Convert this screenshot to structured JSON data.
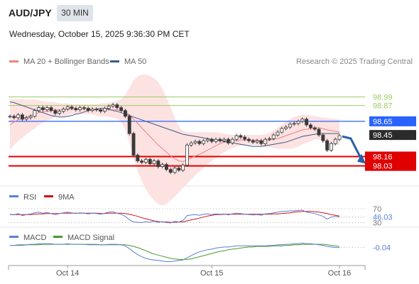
{
  "header": {
    "symbol": "AUD/JPY",
    "timeframe": "30 MIN",
    "datetime": "Wednesday, October 15, 2025 9:36:30 PM CET"
  },
  "colors": {
    "ma20": "#f08080",
    "bollinger_fill": "#fde2e2",
    "ma50": "#3c5a8a",
    "candle": "#3a3a3a",
    "current_price": "#2962ff",
    "support": "#e00000",
    "resistance": "#9acd60",
    "rsi": "#5a7fd8",
    "rsi_ma": "#d01010",
    "macd": "#5a7fd8",
    "macd_signal": "#4a9a2a",
    "arrow": "#2a5fa8"
  },
  "chart_data": [
    {
      "type": "candlestick",
      "legend": [
        {
          "name": "MA 20 + Bollinger Bands",
          "color": "#f08080"
        },
        {
          "name": "MA 50",
          "color": "#3c5a8a"
        }
      ],
      "legend_position": "top-left",
      "attribution": "Research © 2025 Trading Central",
      "ylim": [
        97.75,
        99.35
      ],
      "current_price": 98.65,
      "last_price": 98.45,
      "resistance_levels": [
        98.99,
        98.87
      ],
      "support_levels": [
        98.16,
        98.03
      ],
      "price_labels": [
        "98.99",
        "98.87",
        "98.65",
        "98.45",
        "98.16",
        "98.03"
      ],
      "forecast_arrow": {
        "from": 98.44,
        "to": 98.1
      },
      "x_ticks": [
        "Oct 14",
        "Oct 15",
        "Oct 16"
      ],
      "close": [
        98.72,
        98.7,
        98.74,
        98.68,
        98.7,
        98.72,
        98.8,
        98.84,
        98.81,
        98.84,
        98.8,
        98.76,
        98.79,
        98.82,
        98.85,
        98.83,
        98.81,
        98.84,
        98.83,
        98.8,
        98.82,
        98.81,
        98.79,
        98.83,
        98.86,
        98.88,
        98.84,
        98.8,
        98.72,
        98.48,
        98.18,
        98.1,
        98.08,
        98.12,
        98.06,
        98.1,
        98.02,
        98.05,
        97.98,
        97.94,
        98.0,
        97.97,
        98.04,
        98.32,
        98.35,
        98.37,
        98.34,
        98.38,
        98.4,
        98.37,
        98.4,
        98.38,
        98.4,
        98.35,
        98.4,
        98.45,
        98.43,
        98.4,
        98.38,
        98.36,
        98.38,
        98.34,
        98.4,
        98.41,
        98.46,
        98.5,
        98.55,
        98.57,
        98.61,
        98.62,
        98.65,
        98.68,
        98.6,
        98.56,
        98.54,
        98.46,
        98.38,
        98.25,
        98.34,
        98.4,
        98.45
      ],
      "ma20": [
        98.6,
        98.64,
        98.67,
        98.69,
        98.71,
        98.73,
        98.75,
        98.77,
        98.78,
        98.79,
        98.8,
        98.81,
        98.81,
        98.81,
        98.82,
        98.82,
        98.82,
        98.82,
        98.82,
        98.82,
        98.82,
        98.81,
        98.81,
        98.81,
        98.81,
        98.81,
        98.81,
        98.8,
        98.78,
        98.74,
        98.68,
        98.62,
        98.56,
        98.5,
        98.44,
        98.38,
        98.32,
        98.27,
        98.22,
        98.17,
        98.13,
        98.1,
        98.09,
        98.11,
        98.14,
        98.17,
        98.19,
        98.22,
        98.25,
        98.28,
        98.31,
        98.34,
        98.36,
        98.37,
        98.38,
        98.38,
        98.39,
        98.39,
        98.39,
        98.39,
        98.39,
        98.38,
        98.38,
        98.39,
        98.4,
        98.41,
        98.43,
        98.45,
        98.47,
        98.49,
        98.51,
        98.53,
        98.54,
        98.55,
        98.56,
        98.56,
        98.55,
        98.53,
        98.52,
        98.51,
        98.5
      ],
      "bollinger_upper": [
        98.95,
        98.96,
        98.96,
        98.96,
        98.95,
        98.95,
        98.95,
        98.94,
        98.93,
        98.92,
        98.92,
        98.91,
        98.9,
        98.9,
        98.9,
        98.89,
        98.89,
        98.89,
        98.89,
        98.89,
        98.89,
        98.89,
        98.9,
        98.9,
        98.91,
        98.92,
        98.93,
        98.96,
        99.02,
        99.12,
        99.22,
        99.28,
        99.3,
        99.3,
        99.28,
        99.25,
        99.2,
        99.1,
        98.98,
        98.85,
        98.7,
        98.58,
        98.52,
        98.5,
        98.5,
        98.5,
        98.5,
        98.5,
        98.5,
        98.5,
        98.5,
        98.49,
        98.48,
        98.47,
        98.46,
        98.46,
        98.46,
        98.46,
        98.46,
        98.46,
        98.46,
        98.46,
        98.47,
        98.49,
        98.52,
        98.56,
        98.6,
        98.64,
        98.68,
        98.71,
        98.73,
        98.74,
        98.74,
        98.73,
        98.72,
        98.71,
        98.7,
        98.7,
        98.69,
        98.68,
        98.68
      ],
      "bollinger_lower": [
        98.25,
        98.32,
        98.38,
        98.42,
        98.47,
        98.51,
        98.55,
        98.6,
        98.63,
        98.66,
        98.68,
        98.71,
        98.72,
        98.72,
        98.74,
        98.75,
        98.75,
        98.75,
        98.75,
        98.75,
        98.75,
        98.73,
        98.72,
        98.72,
        98.71,
        98.7,
        98.69,
        98.64,
        98.54,
        98.36,
        98.14,
        97.96,
        97.82,
        97.7,
        97.62,
        97.55,
        97.5,
        97.48,
        97.5,
        97.55,
        97.6,
        97.66,
        97.72,
        97.78,
        97.84,
        97.9,
        97.95,
        98.0,
        98.05,
        98.1,
        98.14,
        98.18,
        98.22,
        98.25,
        98.28,
        98.3,
        98.31,
        98.32,
        98.32,
        98.32,
        98.32,
        98.3,
        98.29,
        98.29,
        98.28,
        98.27,
        98.27,
        98.27,
        98.27,
        98.28,
        98.3,
        98.33,
        98.35,
        98.37,
        98.4,
        98.4,
        98.38,
        98.34,
        98.32,
        98.32,
        98.32
      ],
      "ma50": [
        98.92,
        98.91,
        98.89,
        98.87,
        98.85,
        98.83,
        98.81,
        98.79,
        98.77,
        98.75,
        98.73,
        98.72,
        98.71,
        98.71,
        98.72,
        98.73,
        98.75,
        98.76,
        98.78,
        98.8,
        98.81,
        98.82,
        98.83,
        98.83,
        98.82,
        98.8,
        98.79,
        98.77,
        98.75,
        98.73,
        98.71,
        98.69,
        98.67,
        98.65,
        98.63,
        98.61,
        98.59,
        98.57,
        98.55,
        98.53,
        98.51,
        98.49,
        98.47,
        98.46,
        98.45,
        98.44,
        98.43,
        98.42,
        98.41,
        98.4,
        98.39,
        98.38,
        98.37,
        98.36,
        98.35,
        98.34,
        98.33,
        98.32,
        98.31,
        98.3,
        98.3,
        98.3,
        98.31,
        98.32,
        98.33,
        98.34,
        98.35,
        98.36,
        98.38,
        98.4,
        98.42,
        98.44,
        98.45,
        98.46,
        98.47,
        98.48,
        98.48,
        98.48,
        98.48,
        98.48,
        98.48
      ]
    },
    {
      "type": "line",
      "legend": [
        {
          "name": "RSI",
          "color": "#5a7fd8"
        },
        {
          "name": "9MA",
          "color": "#d01010"
        }
      ],
      "ylim": [
        25,
        80
      ],
      "levels": [
        70,
        30
      ],
      "level_labels": [
        "70",
        "30"
      ],
      "last_value_label": "46.03",
      "rsi": [
        54,
        52,
        56,
        50,
        53,
        55,
        58,
        60,
        57,
        59,
        56,
        53,
        56,
        58,
        60,
        58,
        56,
        58,
        57,
        55,
        57,
        56,
        54,
        57,
        60,
        61,
        57,
        54,
        48,
        38,
        32,
        31,
        30,
        33,
        31,
        34,
        31,
        33,
        30,
        29,
        34,
        32,
        36,
        50,
        52,
        53,
        51,
        54,
        55,
        53,
        55,
        54,
        55,
        52,
        55,
        57,
        56,
        54,
        53,
        52,
        53,
        51,
        55,
        56,
        58,
        60,
        62,
        62,
        64,
        64,
        65,
        66,
        60,
        58,
        56,
        52,
        48,
        40,
        46,
        48,
        46
      ],
      "rsi_ma": [
        53,
        53,
        53,
        53,
        53,
        53,
        54,
        55,
        55,
        56,
        56,
        56,
        56,
        57,
        57,
        57,
        57,
        57,
        57,
        57,
        57,
        57,
        56,
        56,
        57,
        57,
        57,
        57,
        56,
        54,
        51,
        48,
        44,
        41,
        38,
        35,
        33,
        32,
        32,
        31,
        31,
        32,
        32,
        35,
        38,
        40,
        43,
        46,
        49,
        51,
        53,
        53,
        54,
        54,
        54,
        54,
        54,
        54,
        54,
        54,
        54,
        54,
        54,
        54,
        55,
        55,
        56,
        57,
        58,
        60,
        61,
        62,
        62,
        62,
        61,
        60,
        58,
        56,
        53,
        51,
        49
      ]
    },
    {
      "type": "line",
      "legend": [
        {
          "name": "MACD",
          "color": "#5a7fd8"
        },
        {
          "name": "MACD Signal",
          "color": "#4a9a2a"
        }
      ],
      "ylim": [
        -0.32,
        0.06
      ],
      "last_value_label": "-0.04",
      "macd": [
        0.0,
        0.0,
        0.01,
        0.01,
        0.01,
        0.02,
        0.02,
        0.03,
        0.03,
        0.03,
        0.03,
        0.02,
        0.02,
        0.02,
        0.03,
        0.02,
        0.02,
        0.02,
        0.02,
        0.01,
        0.01,
        0.01,
        0.01,
        0.01,
        0.02,
        0.02,
        0.02,
        0.01,
        -0.01,
        -0.06,
        -0.12,
        -0.17,
        -0.21,
        -0.24,
        -0.26,
        -0.27,
        -0.28,
        -0.29,
        -0.3,
        -0.3,
        -0.29,
        -0.28,
        -0.27,
        -0.23,
        -0.19,
        -0.15,
        -0.12,
        -0.1,
        -0.08,
        -0.07,
        -0.05,
        -0.04,
        -0.03,
        -0.03,
        -0.02,
        -0.01,
        -0.01,
        -0.01,
        -0.01,
        -0.01,
        -0.01,
        -0.01,
        -0.01,
        0.0,
        0.0,
        0.01,
        0.01,
        0.02,
        0.02,
        0.03,
        0.03,
        0.04,
        0.03,
        0.03,
        0.02,
        0.01,
        0.0,
        -0.02,
        -0.03,
        -0.04,
        -0.04
      ],
      "macd_signal": [
        0.0,
        0.0,
        0.0,
        0.0,
        0.01,
        0.01,
        0.01,
        0.01,
        0.02,
        0.02,
        0.02,
        0.02,
        0.02,
        0.02,
        0.02,
        0.02,
        0.02,
        0.02,
        0.02,
        0.02,
        0.02,
        0.02,
        0.01,
        0.01,
        0.01,
        0.01,
        0.01,
        0.01,
        0.01,
        0.0,
        -0.02,
        -0.04,
        -0.07,
        -0.1,
        -0.13,
        -0.16,
        -0.18,
        -0.2,
        -0.22,
        -0.24,
        -0.25,
        -0.26,
        -0.26,
        -0.26,
        -0.25,
        -0.23,
        -0.21,
        -0.19,
        -0.17,
        -0.15,
        -0.13,
        -0.11,
        -0.1,
        -0.08,
        -0.07,
        -0.06,
        -0.05,
        -0.04,
        -0.03,
        -0.03,
        -0.02,
        -0.02,
        -0.02,
        -0.02,
        -0.01,
        -0.01,
        -0.01,
        0.0,
        0.0,
        0.01,
        0.01,
        0.02,
        0.02,
        0.02,
        0.02,
        0.02,
        0.02,
        0.01,
        0.0,
        -0.01,
        -0.02
      ]
    }
  ]
}
